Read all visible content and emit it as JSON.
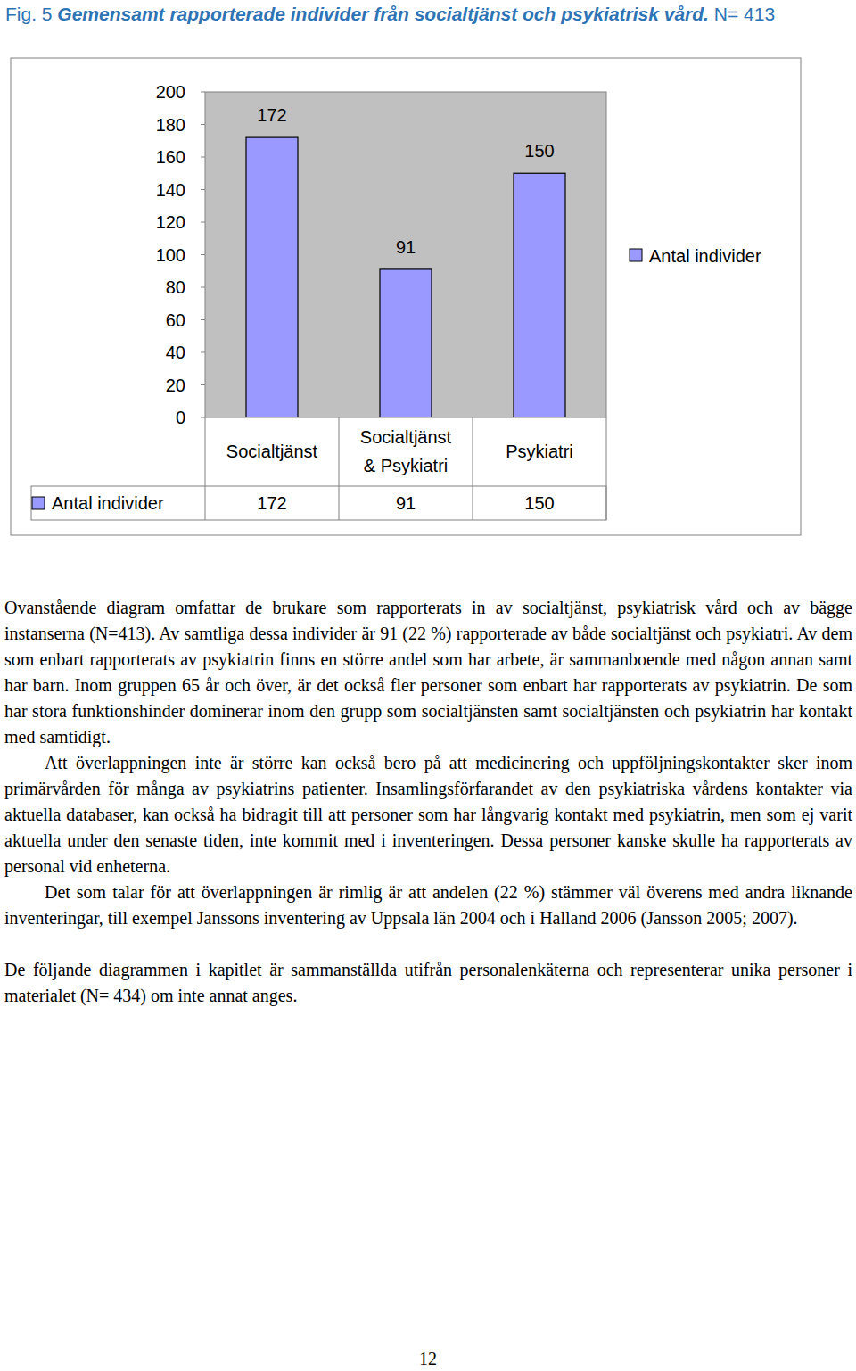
{
  "caption": {
    "label": "Fig. 5",
    "title": "Gemensamt rapporterade individer från socialtjänst och psykiatrisk vård.",
    "note": "N= 413"
  },
  "chart_data": {
    "type": "bar",
    "categories": [
      "Socialtjänst",
      "Socialtjänst\n& Psykiatri",
      "Psykiatri"
    ],
    "series": [
      {
        "name": "Antal individer",
        "color": "#9999ff",
        "values": [
          172,
          91,
          150
        ]
      }
    ],
    "ylim": [
      0,
      200
    ],
    "yticks": [
      0,
      20,
      40,
      60,
      80,
      100,
      120,
      140,
      160,
      180,
      200
    ],
    "grid": false,
    "data_labels": true,
    "legend": "right"
  },
  "paragraphs": [
    "Ovanstående diagram omfattar de brukare som rapporterats in av socialtjänst, psykiatrisk vård och av bägge instanserna (N=413). Av samtliga dessa individer är 91 (22 %) rapporterade av både socialtjänst och psykiatri. Av dem som enbart rapporterats av psykiatrin finns en större andel som har arbete, är sammanboende med någon annan samt har barn. Inom gruppen 65 år och över, är det också fler personer som enbart har rapporterats av psykiatrin. De som har stora funktionshinder dominerar inom den grupp som socialtjänsten samt socialtjänsten och psykiatrin har kontakt med samtidigt.",
    "Att överlappningen inte är större kan också bero på att medicinering och uppföljningskontakter sker inom primärvården för många av psykiatrins patienter. Insamlingsförfarandet av den psykiatriska vårdens kontakter via aktuella databaser, kan också ha bidragit till att personer som har långvarig kontakt med psykiatrin, men som ej varit aktuella under den senaste tiden, inte kommit med i inventeringen. Dessa personer kanske skulle ha rapporterats av personal vid enheterna.",
    "Det som talar för att överlappningen är rimlig är att andelen (22 %) stämmer väl överens med andra liknande inventeringar, till exempel Janssons inventering av Uppsala län 2004 och i Halland 2006 (Jansson 2005; 2007).",
    "De följande diagrammen i kapitlet är sammanställda utifrån personalenkäterna och representerar unika personer i materialet (N= 434) om inte annat anges."
  ],
  "page_number": "12"
}
